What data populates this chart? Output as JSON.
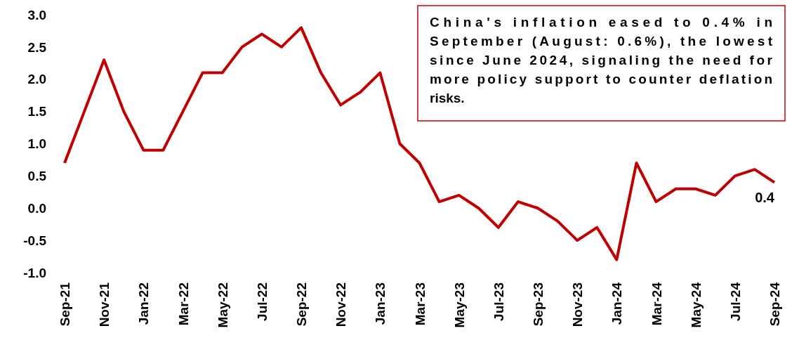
{
  "chart_data": {
    "type": "line",
    "categories": [
      "Sep-21",
      null,
      "Nov-21",
      null,
      "Jan-22",
      null,
      "Mar-22",
      null,
      "May-22",
      null,
      "Jul-22",
      null,
      "Sep-22",
      null,
      "Nov-22",
      null,
      "Jan-23",
      null,
      "Mar-23",
      null,
      "May-23",
      null,
      "Jul-23",
      null,
      "Sep-23",
      null,
      "Nov-23",
      null,
      "Jan-24",
      null,
      "Mar-24",
      null,
      "May-24",
      null,
      "Jul-24",
      null,
      "Sep-24"
    ],
    "series": [
      {
        "color": "#c00000",
        "values": [
          0.7,
          1.5,
          2.3,
          1.5,
          0.9,
          0.9,
          1.5,
          2.1,
          2.1,
          2.5,
          2.7,
          2.5,
          2.8,
          2.1,
          1.6,
          1.8,
          2.1,
          1.0,
          0.7,
          0.1,
          0.2,
          0.0,
          -0.3,
          0.1,
          0.0,
          -0.2,
          -0.5,
          -0.3,
          -0.8,
          0.7,
          0.1,
          0.3,
          0.3,
          0.2,
          0.5,
          0.6,
          0.4
        ],
        "value_labels": [
          null,
          null,
          null,
          null,
          null,
          null,
          null,
          null,
          null,
          null,
          null,
          null,
          null,
          null,
          null,
          null,
          null,
          null,
          null,
          null,
          null,
          null,
          null,
          null,
          null,
          null,
          null,
          null,
          null,
          null,
          null,
          null,
          null,
          null,
          null,
          null,
          "0.4"
        ]
      }
    ],
    "ylim": [
      -1,
      3
    ],
    "yticks": [
      {
        "value": -1,
        "label": "-1.0"
      },
      {
        "value": -0.5,
        "label": "-0.5"
      },
      {
        "value": 0,
        "label": "0.0"
      },
      {
        "value": 0.5,
        "label": "0.5"
      },
      {
        "value": 1,
        "label": "1.0"
      },
      {
        "value": 1.5,
        "label": "1.5"
      },
      {
        "value": 2,
        "label": "2.0"
      },
      {
        "value": 2.5,
        "label": "2.5"
      },
      {
        "value": 3,
        "label": "3.0"
      }
    ],
    "grid": false,
    "marker": "none",
    "line_style": "solid",
    "annotations": [
      "China's inflation eased to 0.4% in September (August: 0.6%), the lowest since June 2024, signaling the need for more policy support to counter deflation risks."
    ]
  }
}
